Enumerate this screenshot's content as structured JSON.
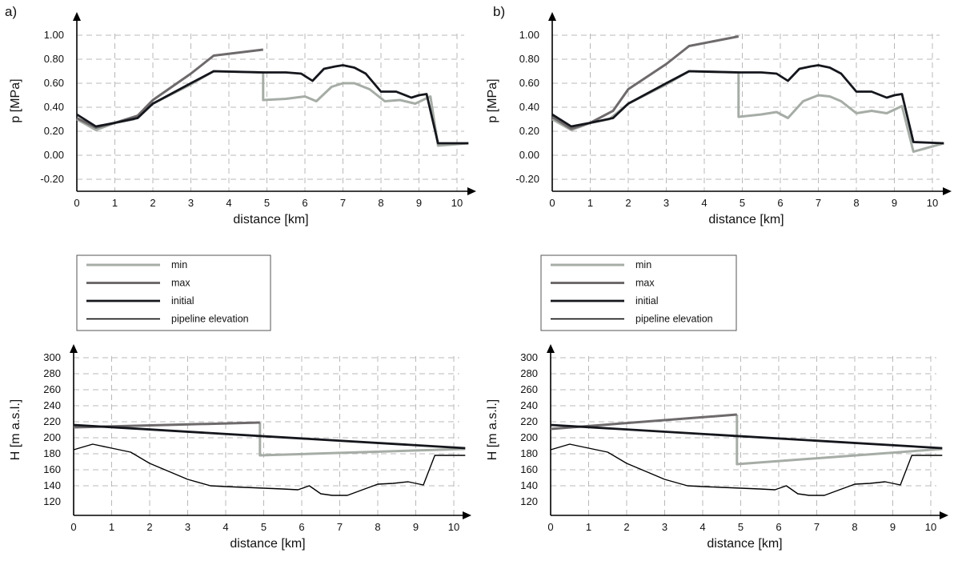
{
  "panels": [
    {
      "label": "a)"
    },
    {
      "label": "b)"
    }
  ],
  "colors": {
    "min": "#a6aca6",
    "max": "#6e6a6c",
    "initial": "#14161c",
    "elevation": "#000000"
  },
  "legend": {
    "entries": [
      {
        "key": "min",
        "label": "min"
      },
      {
        "key": "max",
        "label": "max"
      },
      {
        "key": "initial",
        "label": "initial"
      },
      {
        "key": "elevation",
        "label": "pipeline elevation"
      }
    ]
  },
  "chart_data": [
    {
      "id": "pressure-a",
      "type": "line",
      "xlabel": "distance [km]",
      "ylabel": "p [MPa]",
      "xlim": [
        0,
        10.35
      ],
      "ylim": [
        -0.2,
        1.0
      ],
      "xticks": [
        "0",
        "1",
        "2",
        "3",
        "4",
        "5",
        "6",
        "7",
        "8",
        "9",
        "10"
      ],
      "yticks": [
        "-0.20",
        "0.00",
        "0.20",
        "0.40",
        "0.60",
        "0.80",
        "1.00"
      ],
      "grid": true,
      "series": [
        {
          "name": "initial",
          "x": [
            0,
            0.5,
            1,
            1.6,
            2,
            3,
            3.6,
            4.9,
            5.5,
            5.9,
            6.2,
            6.5,
            6.8,
            7.0,
            7.3,
            7.6,
            8.0,
            8.4,
            8.8,
            9.0,
            9.2,
            9.5,
            10.3
          ],
          "y": [
            0.34,
            0.24,
            0.27,
            0.31,
            0.43,
            0.6,
            0.7,
            0.69,
            0.69,
            0.68,
            0.62,
            0.72,
            0.74,
            0.75,
            0.73,
            0.68,
            0.53,
            0.53,
            0.48,
            0.5,
            0.51,
            0.1,
            0.1
          ]
        },
        {
          "name": "max",
          "x": [
            0,
            0.5,
            1,
            1.6,
            2,
            3,
            3.6,
            4.9
          ],
          "y": [
            0.31,
            0.23,
            0.27,
            0.33,
            0.46,
            0.68,
            0.83,
            0.88
          ]
        },
        {
          "name": "min",
          "x": [
            0,
            0.5,
            1,
            1.5,
            2,
            3,
            3.6,
            4.9,
            4.9,
            5.5,
            6.0,
            6.3,
            6.7,
            7.0,
            7.3,
            7.7,
            8.1,
            8.5,
            8.9,
            9.3,
            9.5,
            10.3
          ],
          "y": [
            0.3,
            0.21,
            0.27,
            0.3,
            0.43,
            0.59,
            0.7,
            0.69,
            0.46,
            0.47,
            0.49,
            0.45,
            0.57,
            0.6,
            0.6,
            0.55,
            0.45,
            0.46,
            0.43,
            0.49,
            0.08,
            0.1
          ]
        }
      ]
    },
    {
      "id": "pressure-b",
      "type": "line",
      "xlabel": "distance [km]",
      "ylabel": "p [MPa]",
      "xlim": [
        0,
        10.35
      ],
      "ylim": [
        -0.2,
        1.0
      ],
      "xticks": [
        "0",
        "1",
        "2",
        "3",
        "4",
        "5",
        "6",
        "7",
        "8",
        "9",
        "10"
      ],
      "yticks": [
        "-0.20",
        "0.00",
        "0.20",
        "0.40",
        "0.60",
        "0.80",
        "1.00"
      ],
      "grid": true,
      "series": [
        {
          "name": "initial",
          "x": [
            0,
            0.5,
            1,
            1.6,
            2,
            3,
            3.6,
            4.9,
            5.5,
            5.9,
            6.2,
            6.5,
            6.8,
            7.0,
            7.3,
            7.6,
            8.0,
            8.4,
            8.8,
            9.0,
            9.2,
            9.5,
            10.3
          ],
          "y": [
            0.34,
            0.24,
            0.27,
            0.31,
            0.43,
            0.6,
            0.7,
            0.69,
            0.69,
            0.68,
            0.62,
            0.72,
            0.74,
            0.75,
            0.73,
            0.68,
            0.53,
            0.53,
            0.48,
            0.5,
            0.51,
            0.11,
            0.1
          ]
        },
        {
          "name": "max",
          "x": [
            0,
            0.5,
            1,
            1.6,
            2,
            3,
            3.6,
            4.9
          ],
          "y": [
            0.32,
            0.22,
            0.27,
            0.37,
            0.55,
            0.76,
            0.91,
            0.99
          ]
        },
        {
          "name": "min",
          "x": [
            0,
            0.5,
            1,
            1.5,
            2,
            3,
            3.6,
            4.9,
            4.9,
            5.5,
            5.9,
            6.2,
            6.6,
            7.0,
            7.3,
            7.6,
            8.0,
            8.4,
            8.8,
            9.2,
            9.5,
            10.3
          ],
          "y": [
            0.3,
            0.21,
            0.27,
            0.3,
            0.43,
            0.59,
            0.7,
            0.69,
            0.32,
            0.34,
            0.36,
            0.31,
            0.45,
            0.5,
            0.49,
            0.45,
            0.35,
            0.37,
            0.35,
            0.41,
            0.03,
            0.1
          ]
        }
      ]
    },
    {
      "id": "head-a",
      "type": "line",
      "xlabel": "distance [km]",
      "ylabel": "H [m a.s.l.]",
      "xlim": [
        0,
        10.35
      ],
      "ylim": [
        120,
        300
      ],
      "xticks": [
        "0",
        "1",
        "2",
        "3",
        "4",
        "5",
        "6",
        "7",
        "8",
        "9",
        "10"
      ],
      "yticks": [
        "120",
        "140",
        "160",
        "180",
        "200",
        "220",
        "240",
        "260",
        "280",
        "300"
      ],
      "grid": true,
      "series": [
        {
          "name": "initial",
          "x": [
            0,
            10.3
          ],
          "y": [
            216,
            187
          ]
        },
        {
          "name": "max",
          "x": [
            0,
            4.9
          ],
          "y": [
            213,
            219
          ]
        },
        {
          "name": "min",
          "x": [
            4.9,
            4.9,
            10.3
          ],
          "y": [
            219,
            178,
            186
          ]
        },
        {
          "name": "pipeline elevation",
          "x": [
            0,
            0.5,
            1,
            1.5,
            2,
            2.5,
            3,
            3.6,
            4,
            4.5,
            5,
            5.5,
            5.9,
            6.2,
            6.5,
            6.8,
            7.2,
            7.6,
            8.0,
            8.4,
            8.8,
            9.2,
            9.5,
            10.3
          ],
          "y": [
            185,
            192,
            187,
            182,
            168,
            158,
            148,
            140,
            139,
            138,
            137,
            136,
            135,
            140,
            130,
            128,
            128,
            135,
            142,
            143,
            145,
            141,
            178,
            178
          ]
        }
      ]
    },
    {
      "id": "head-b",
      "type": "line",
      "xlabel": "distance [km]",
      "ylabel": "H [m a.s.l.]",
      "xlim": [
        0,
        10.35
      ],
      "ylim": [
        120,
        300
      ],
      "xticks": [
        "0",
        "1",
        "2",
        "3",
        "4",
        "5",
        "6",
        "7",
        "8",
        "9",
        "10"
      ],
      "yticks": [
        "120",
        "140",
        "160",
        "180",
        "200",
        "220",
        "240",
        "260",
        "280",
        "300"
      ],
      "grid": true,
      "series": [
        {
          "name": "initial",
          "x": [
            0,
            10.3
          ],
          "y": [
            216,
            187
          ]
        },
        {
          "name": "max",
          "x": [
            0,
            4.9
          ],
          "y": [
            211,
            229
          ]
        },
        {
          "name": "min",
          "x": [
            4.9,
            4.9,
            10.3
          ],
          "y": [
            229,
            167,
            186
          ]
        },
        {
          "name": "pipeline elevation",
          "x": [
            0,
            0.5,
            1,
            1.5,
            2,
            2.5,
            3,
            3.6,
            4,
            4.5,
            5,
            5.5,
            5.9,
            6.2,
            6.5,
            6.8,
            7.2,
            7.6,
            8.0,
            8.4,
            8.8,
            9.2,
            9.5,
            10.3
          ],
          "y": [
            185,
            192,
            187,
            182,
            168,
            158,
            148,
            140,
            139,
            138,
            137,
            136,
            135,
            140,
            130,
            128,
            128,
            135,
            142,
            143,
            145,
            141,
            178,
            178
          ]
        }
      ]
    }
  ]
}
